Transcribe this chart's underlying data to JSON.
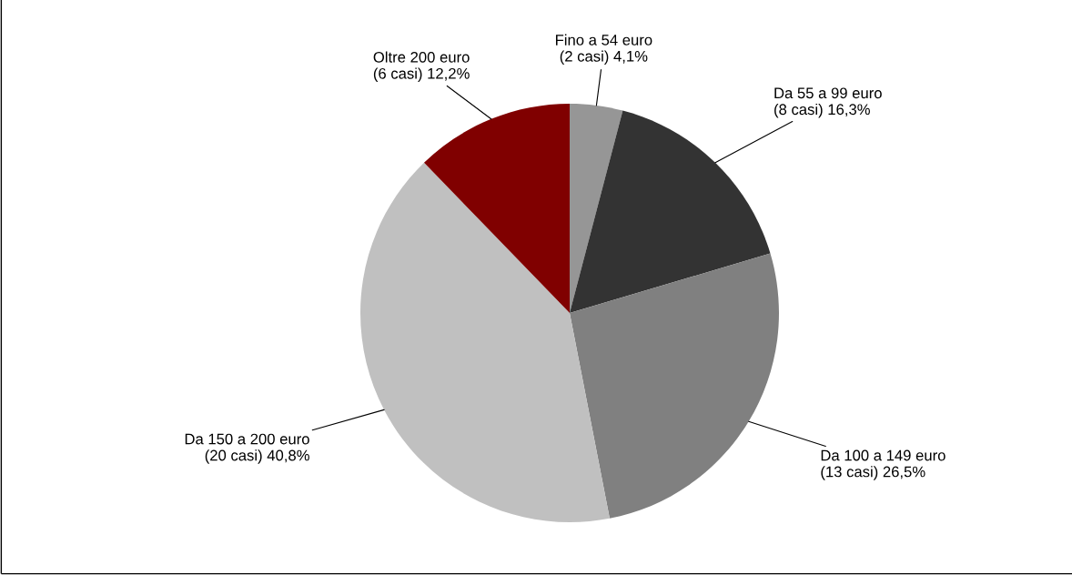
{
  "chart_data": {
    "type": "pie",
    "categories": [
      "Fino a 54 euro",
      "Da 55 a 99 euro",
      "Da 100 a 149 euro",
      "Da 150 a 200 euro",
      "Oltre 200 euro"
    ],
    "values": [
      2,
      8,
      13,
      20,
      6
    ],
    "value_labels": [
      "(2 casi) 4,1%",
      "(8 casi) 16,3%",
      "(13 casi) 26,5%",
      "(20 casi) 40,8%",
      "(6 casi) 12,2%"
    ],
    "colors": [
      "#969696",
      "#333333",
      "#808080",
      "#c0c0c0",
      "#800000"
    ],
    "legend": false
  }
}
